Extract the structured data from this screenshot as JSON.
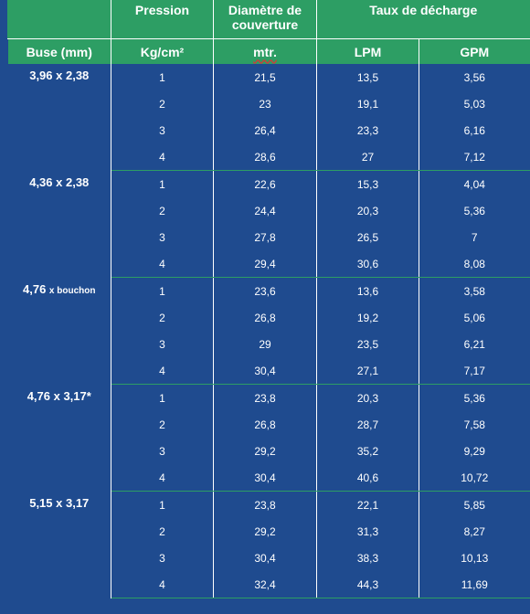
{
  "header": {
    "pression": "Pression",
    "diametre_line1": "Diamètre de",
    "diametre_line2": "couverture",
    "taux": "Taux de décharge",
    "buse": "Buse (mm)",
    "pression_unit": "Kg/cm²",
    "diametre_unit": "mtr.",
    "lpm": "LPM",
    "gpm": "GPM"
  },
  "groups": [
    {
      "buse": "3,96 x 2,38",
      "rows": [
        {
          "p": "1",
          "d": "21,5",
          "lpm": "13,5",
          "gpm": "3,56"
        },
        {
          "p": "2",
          "d": "23",
          "lpm": "19,1",
          "gpm": "5,03"
        },
        {
          "p": "3",
          "d": "26,4",
          "lpm": "23,3",
          "gpm": "6,16"
        },
        {
          "p": "4",
          "d": "28,6",
          "lpm": "27",
          "gpm": "7,12"
        }
      ]
    },
    {
      "buse": "4,36 x 2,38",
      "rows": [
        {
          "p": "1",
          "d": "22,6",
          "lpm": "15,3",
          "gpm": "4,04"
        },
        {
          "p": "2",
          "d": "24,4",
          "lpm": "20,3",
          "gpm": "5,36"
        },
        {
          "p": "3",
          "d": "27,8",
          "lpm": "26,5",
          "gpm": "7"
        },
        {
          "p": "4",
          "d": "29,4",
          "lpm": "30,6",
          "gpm": "8,08"
        }
      ]
    },
    {
      "buse_main": "4,76 ",
      "buse_small": "x bouchon",
      "rows": [
        {
          "p": "1",
          "d": "23,6",
          "lpm": "13,6",
          "gpm": "3,58"
        },
        {
          "p": "2",
          "d": "26,8",
          "lpm": "19,2",
          "gpm": "5,06"
        },
        {
          "p": "3",
          "d": "29",
          "lpm": "23,5",
          "gpm": "6,21"
        },
        {
          "p": "4",
          "d": "30,4",
          "lpm": "27,1",
          "gpm": "7,17"
        }
      ]
    },
    {
      "buse": "4,76 x 3,17*",
      "rows": [
        {
          "p": "1",
          "d": "23,8",
          "lpm": "20,3",
          "gpm": "5,36"
        },
        {
          "p": "2",
          "d": "26,8",
          "lpm": "28,7",
          "gpm": "7,58"
        },
        {
          "p": "3",
          "d": "29,2",
          "lpm": "35,2",
          "gpm": "9,29"
        },
        {
          "p": "4",
          "d": "30,4",
          "lpm": "40,6",
          "gpm": "10,72"
        }
      ]
    },
    {
      "buse": "5,15 x 3,17",
      "rows": [
        {
          "p": "1",
          "d": "23,8",
          "lpm": "22,1",
          "gpm": "5,85"
        },
        {
          "p": "2",
          "d": "29,2",
          "lpm": "31,3",
          "gpm": "8,27"
        },
        {
          "p": "3",
          "d": "30,4",
          "lpm": "38,3",
          "gpm": "10,13"
        },
        {
          "p": "4",
          "d": "32,4",
          "lpm": "44,3",
          "gpm": "11,69"
        }
      ]
    }
  ]
}
